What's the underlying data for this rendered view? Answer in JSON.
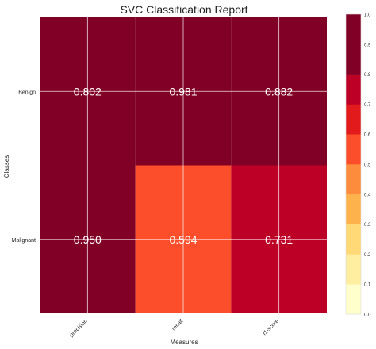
{
  "chart_data": {
    "type": "heatmap",
    "title": "SVC Classification Report",
    "xlabel": "Measures",
    "ylabel": "Classes",
    "x_categories": [
      "precision",
      "recall",
      "f1-score"
    ],
    "y_categories": [
      "Benign",
      "Malignant"
    ],
    "values": [
      [
        0.802,
        0.981,
        0.882
      ],
      [
        0.95,
        0.594,
        0.731
      ]
    ],
    "value_labels": [
      [
        "0.802",
        "0.981",
        "0.882"
      ],
      [
        "0.950",
        "0.594",
        "0.731"
      ]
    ],
    "colorbar": {
      "range": [
        0.0,
        1.0
      ],
      "ticks": [
        "0.0",
        "0.1",
        "0.2",
        "0.3",
        "0.4",
        "0.5",
        "0.6",
        "0.7",
        "0.8",
        "0.9",
        "1.0"
      ],
      "colors": [
        "#ffffcc",
        "#ffeda0",
        "#fed976",
        "#feb24c",
        "#fd8d3c",
        "#fc4e2a",
        "#e31a1c",
        "#bd0026",
        "#800026",
        "#800026"
      ]
    },
    "grid": true
  }
}
